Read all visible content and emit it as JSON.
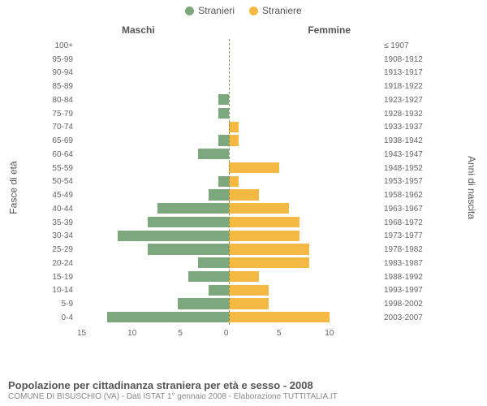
{
  "legend": {
    "male": {
      "label": "Stranieri",
      "color": "#7da87d"
    },
    "female": {
      "label": "Straniere",
      "color": "#f4b942"
    }
  },
  "headers": {
    "male": "Maschi",
    "female": "Femmine"
  },
  "yaxis_left_label": "Fasce di età",
  "yaxis_right_label": "Anni di nascita",
  "x_max": 15,
  "x_ticks_left": [
    "15",
    "10",
    "5",
    "0"
  ],
  "x_ticks_right": [
    "0",
    "5",
    "10"
  ],
  "age_groups": [
    {
      "age": "100+",
      "birth": "≤ 1907",
      "m": 0,
      "f": 0
    },
    {
      "age": "95-99",
      "birth": "1908-1912",
      "m": 0,
      "f": 0
    },
    {
      "age": "90-94",
      "birth": "1913-1917",
      "m": 0,
      "f": 0
    },
    {
      "age": "85-89",
      "birth": "1918-1922",
      "m": 0,
      "f": 0
    },
    {
      "age": "80-84",
      "birth": "1923-1927",
      "m": 1,
      "f": 0
    },
    {
      "age": "75-79",
      "birth": "1928-1932",
      "m": 1,
      "f": 0
    },
    {
      "age": "70-74",
      "birth": "1933-1937",
      "m": 0,
      "f": 1
    },
    {
      "age": "65-69",
      "birth": "1938-1942",
      "m": 1,
      "f": 1
    },
    {
      "age": "60-64",
      "birth": "1943-1947",
      "m": 3,
      "f": 0
    },
    {
      "age": "55-59",
      "birth": "1948-1952",
      "m": 0,
      "f": 5
    },
    {
      "age": "50-54",
      "birth": "1953-1957",
      "m": 1,
      "f": 1
    },
    {
      "age": "45-49",
      "birth": "1958-1962",
      "m": 2,
      "f": 3
    },
    {
      "age": "40-44",
      "birth": "1963-1967",
      "m": 7,
      "f": 6
    },
    {
      "age": "35-39",
      "birth": "1968-1972",
      "m": 8,
      "f": 7
    },
    {
      "age": "30-34",
      "birth": "1973-1977",
      "m": 11,
      "f": 7
    },
    {
      "age": "25-29",
      "birth": "1978-1982",
      "m": 8,
      "f": 8
    },
    {
      "age": "20-24",
      "birth": "1983-1987",
      "m": 3,
      "f": 8
    },
    {
      "age": "15-19",
      "birth": "1988-1992",
      "m": 4,
      "f": 3
    },
    {
      "age": "10-14",
      "birth": "1993-1997",
      "m": 2,
      "f": 4
    },
    {
      "age": "5-9",
      "birth": "1998-2002",
      "m": 5,
      "f": 4
    },
    {
      "age": "0-4",
      "birth": "2003-2007",
      "m": 12,
      "f": 10
    }
  ],
  "footer": {
    "title": "Popolazione per cittadinanza straniera per età e sesso - 2008",
    "subtitle": "COMUNE DI BISUSCHIO (VA) - Dati ISTAT 1° gennaio 2008 - Elaborazione TUTTITALIA.IT"
  },
  "style": {
    "background": "#ffffff",
    "grid_color": "#efefef",
    "text_color": "#555555",
    "label_fontsize": 10,
    "title_fontsize": 13
  }
}
